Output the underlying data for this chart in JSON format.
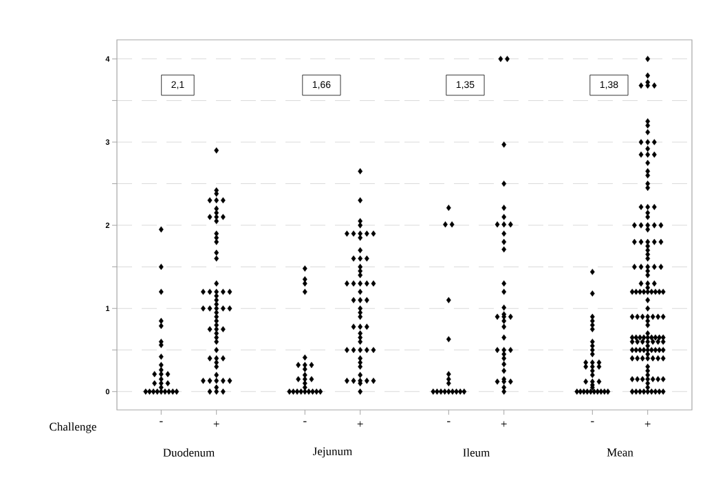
{
  "chart_data": [
    {
      "type": "scatter",
      "categories": [
        "-",
        "+"
      ],
      "xlabel": "Duodenum",
      "marker": "diamond",
      "grid": "y",
      "ylim": [
        -0.22,
        4.23
      ],
      "yticks": [
        0,
        {
          "value": 0.5,
          "label": null
        },
        1,
        {
          "value": 1.5,
          "label": null
        },
        2,
        {
          "value": 2.5,
          "label": null
        },
        3,
        {
          "value": 3.5,
          "label": null
        },
        4
      ],
      "annotations": [
        "2,1",
        "Challenge"
      ],
      "series": [
        {
          "color": "#000000",
          "x": [
            "-",
            "-",
            "-",
            "-",
            "-",
            "-",
            "-",
            "-",
            "-",
            "-",
            "-",
            "-",
            "-",
            "-",
            "-",
            "-",
            "-",
            "-",
            "-",
            "-",
            "-",
            "-",
            "-",
            "-",
            "-",
            "-",
            "-"
          ],
          "values": [
            0,
            0,
            0,
            0,
            0,
            0,
            0,
            0,
            0,
            0.05,
            0.1,
            0.1,
            0.1,
            0.15,
            0.21,
            0.21,
            0.21,
            0.26,
            0.32,
            0.42,
            0.56,
            0.6,
            0.79,
            0.85,
            1.2,
            1.5,
            1.95
          ]
        },
        {
          "color": "#000000",
          "x": [
            "+",
            "+",
            "+",
            "+",
            "+",
            "+",
            "+",
            "+",
            "+",
            "+",
            "+",
            "+",
            "+",
            "+",
            "+",
            "+",
            "+",
            "+",
            "+",
            "+",
            "+",
            "+",
            "+",
            "+",
            "+",
            "+",
            "+",
            "+",
            "+",
            "+",
            "+",
            "+",
            "+",
            "+",
            "+",
            "+",
            "+",
            "+",
            "+",
            "+",
            "+",
            "+",
            "+",
            "+",
            "+",
            "+",
            "+",
            "+",
            "+",
            "+",
            "+",
            "+",
            "+",
            "+",
            "+",
            "+",
            "+"
          ],
          "values": [
            0,
            0,
            0,
            0.05,
            0.13,
            0.13,
            0.13,
            0.13,
            0.13,
            0.2,
            0.3,
            0.35,
            0.4,
            0.4,
            0.4,
            0.5,
            0.6,
            0.65,
            0.7,
            0.75,
            0.75,
            0.75,
            0.8,
            0.85,
            0.9,
            0.95,
            1,
            1,
            1,
            1,
            1,
            1.05,
            1.1,
            1.15,
            1.2,
            1.2,
            1.2,
            1.2,
            1.2,
            1.3,
            1.6,
            1.67,
            1.8,
            1.85,
            1.9,
            2.05,
            2.1,
            2.1,
            2.1,
            2.15,
            2.2,
            2.3,
            2.3,
            2.3,
            2.38,
            2.42,
            2.9
          ]
        }
      ]
    },
    {
      "type": "scatter",
      "categories": [
        "-",
        "+"
      ],
      "xlabel": "Jejunum",
      "marker": "diamond",
      "grid": "y",
      "tick_labels": "x",
      "ylim": [
        -0.22,
        4.23
      ],
      "yticks": [
        0,
        {
          "value": 0.5,
          "label": null
        },
        1,
        {
          "value": 1.5,
          "label": null
        },
        2,
        {
          "value": 2.5,
          "label": null
        },
        3,
        {
          "value": 3.5,
          "label": null
        },
        4
      ],
      "annotations": [
        "1,66"
      ],
      "series": [
        {
          "color": "#000000",
          "x": [
            "-",
            "-",
            "-",
            "-",
            "-",
            "-",
            "-",
            "-",
            "-",
            "-",
            "-",
            "-",
            "-",
            "-",
            "-",
            "-",
            "-",
            "-",
            "-",
            "-",
            "-",
            "-",
            "-",
            "-"
          ],
          "values": [
            0,
            0,
            0,
            0,
            0,
            0,
            0,
            0,
            0,
            0.05,
            0.1,
            0.15,
            0.15,
            0.15,
            0.2,
            0.27,
            0.32,
            0.32,
            0.32,
            0.41,
            1.2,
            1.3,
            1.35,
            1.48
          ]
        },
        {
          "color": "#000000",
          "x": [
            "+",
            "+",
            "+",
            "+",
            "+",
            "+",
            "+",
            "+",
            "+",
            "+",
            "+",
            "+",
            "+",
            "+",
            "+",
            "+",
            "+",
            "+",
            "+",
            "+",
            "+",
            "+",
            "+",
            "+",
            "+",
            "+",
            "+",
            "+",
            "+",
            "+",
            "+",
            "+",
            "+",
            "+",
            "+",
            "+",
            "+",
            "+",
            "+",
            "+",
            "+",
            "+",
            "+",
            "+",
            "+",
            "+",
            "+",
            "+",
            "+",
            "+",
            "+"
          ],
          "values": [
            0,
            0.1,
            0.13,
            0.13,
            0.13,
            0.13,
            0.13,
            0.2,
            0.3,
            0.35,
            0.4,
            0.5,
            0.5,
            0.5,
            0.5,
            0.5,
            0.6,
            0.65,
            0.7,
            0.78,
            0.78,
            0.78,
            0.9,
            0.95,
            1,
            1.1,
            1.1,
            1.1,
            1.2,
            1.3,
            1.3,
            1.3,
            1.3,
            1.3,
            1.4,
            1.45,
            1.5,
            1.6,
            1.6,
            1.6,
            1.7,
            1.85,
            1.9,
            1.9,
            1.9,
            1.9,
            1.9,
            2,
            2.05,
            2.3,
            2.65
          ]
        }
      ]
    },
    {
      "type": "scatter",
      "categories": [
        "-",
        "+"
      ],
      "xlabel": "Ileum",
      "marker": "diamond",
      "grid": "y",
      "tick_labels": "x",
      "ylim": [
        -0.22,
        4.23
      ],
      "yticks": [
        0,
        {
          "value": 0.5,
          "label": null
        },
        1,
        {
          "value": 1.5,
          "label": null
        },
        2,
        {
          "value": 2.5,
          "label": null
        },
        3,
        {
          "value": 3.5,
          "label": null
        },
        4
      ],
      "annotations": [
        "1,35"
      ],
      "series": [
        {
          "color": "#000000",
          "x": [
            "-",
            "-",
            "-",
            "-",
            "-",
            "-",
            "-",
            "-",
            "-",
            "-",
            "-",
            "-",
            "-",
            "-",
            "-",
            "-",
            "-"
          ],
          "values": [
            0,
            0,
            0,
            0,
            0,
            0,
            0,
            0,
            0,
            0.1,
            0.15,
            0.21,
            0.63,
            1.1,
            2.01,
            2.01,
            2.21
          ]
        },
        {
          "color": "#000000",
          "x": [
            "+",
            "+",
            "+",
            "+",
            "+",
            "+",
            "+",
            "+",
            "+",
            "+",
            "+",
            "+",
            "+",
            "+",
            "+",
            "+",
            "+",
            "+",
            "+",
            "+",
            "+",
            "+",
            "+",
            "+",
            "+",
            "+",
            "+",
            "+",
            "+",
            "+",
            "+",
            "+",
            "+",
            "+",
            "+"
          ],
          "values": [
            0,
            0.05,
            0.12,
            0.12,
            0.12,
            0.15,
            0.25,
            0.33,
            0.4,
            0.45,
            0.5,
            0.5,
            0.5,
            0.65,
            0.78,
            0.85,
            0.9,
            0.9,
            0.9,
            0.93,
            1.01,
            1.2,
            1.3,
            1.71,
            1.8,
            1.9,
            2.01,
            2.01,
            2.01,
            2.1,
            2.21,
            2.5,
            2.97,
            4,
            4
          ]
        }
      ]
    },
    {
      "type": "scatter",
      "categories": [
        "-",
        "+"
      ],
      "xlabel": "Mean",
      "marker": "diamond",
      "grid": "y",
      "tick_labels": "x",
      "ylim": [
        -0.22,
        4.23
      ],
      "yticks": [
        0,
        {
          "value": 0.5,
          "label": null
        },
        1,
        {
          "value": 1.5,
          "label": null
        },
        2,
        {
          "value": 2.5,
          "label": null
        },
        3,
        {
          "value": 3.5,
          "label": null
        },
        4
      ],
      "annotations": [
        "1,38"
      ],
      "series": [
        {
          "color": "#000000",
          "x": [
            "-",
            "-",
            "-",
            "-",
            "-",
            "-",
            "-",
            "-",
            "-",
            "-",
            "-",
            "-",
            "-",
            "-",
            "-",
            "-",
            "-",
            "-",
            "-",
            "-",
            "-",
            "-",
            "-",
            "-",
            "-",
            "-",
            "-",
            "-",
            "-",
            "-",
            "-",
            "-",
            "-"
          ],
          "values": [
            0,
            0,
            0,
            0,
            0,
            0,
            0,
            0,
            0,
            0,
            0.05,
            0.08,
            0.12,
            0.12,
            0.12,
            0.2,
            0.25,
            0.3,
            0.3,
            0.3,
            0.35,
            0.35,
            0.35,
            0.45,
            0.5,
            0.55,
            0.6,
            0.75,
            0.8,
            0.85,
            0.9,
            1.18,
            1.44
          ]
        },
        {
          "color": "#000000",
          "x": [
            "+",
            "+",
            "+",
            "+",
            "+",
            "+",
            "+",
            "+",
            "+",
            "+",
            "+",
            "+",
            "+",
            "+",
            "+",
            "+",
            "+",
            "+",
            "+",
            "+",
            "+",
            "+",
            "+",
            "+",
            "+",
            "+",
            "+",
            "+",
            "+",
            "+",
            "+",
            "+",
            "+",
            "+",
            "+",
            "+",
            "+",
            "+",
            "+",
            "+",
            "+",
            "+",
            "+",
            "+",
            "+",
            "+",
            "+",
            "+",
            "+",
            "+",
            "+",
            "+",
            "+",
            "+",
            "+",
            "+",
            "+",
            "+",
            "+",
            "+",
            "+",
            "+",
            "+",
            "+",
            "+",
            "+",
            "+",
            "+",
            "+",
            "+",
            "+",
            "+",
            "+",
            "+",
            "+",
            "+",
            "+",
            "+",
            "+",
            "+",
            "+",
            "+",
            "+",
            "+",
            "+",
            "+",
            "+",
            "+",
            "+",
            "+",
            "+",
            "+",
            "+",
            "+",
            "+",
            "+",
            "+",
            "+",
            "+",
            "+",
            "+",
            "+",
            "+",
            "+",
            "+",
            "+",
            "+",
            "+",
            "+",
            "+",
            "+",
            "+",
            "+",
            "+",
            "+",
            "+",
            "+",
            "+",
            "+",
            "+",
            "+",
            "+",
            "+",
            "+",
            "+",
            "+",
            "+",
            "+"
          ],
          "values": [
            0,
            0,
            0,
            0,
            0,
            0,
            0,
            0,
            0,
            0.05,
            0.1,
            0.15,
            0.15,
            0.15,
            0.15,
            0.15,
            0.15,
            0.15,
            0.2,
            0.25,
            0.3,
            0.4,
            0.4,
            0.4,
            0.4,
            0.4,
            0.4,
            0.4,
            0.45,
            0.5,
            0.5,
            0.5,
            0.5,
            0.5,
            0.5,
            0.5,
            0.5,
            0.5,
            0.55,
            0.6,
            0.6,
            0.6,
            0.6,
            0.6,
            0.6,
            0.6,
            0.65,
            0.65,
            0.65,
            0.65,
            0.65,
            0.65,
            0.65,
            0.65,
            0.65,
            0.7,
            0.8,
            0.85,
            0.9,
            0.9,
            0.9,
            0.9,
            0.9,
            0.9,
            0.9,
            1,
            1.1,
            1.2,
            1.2,
            1.2,
            1.2,
            1.2,
            1.2,
            1.2,
            1.2,
            1.2,
            1.25,
            1.3,
            1.3,
            1.3,
            1.4,
            1.45,
            1.5,
            1.5,
            1.5,
            1.5,
            1.5,
            1.6,
            1.65,
            1.7,
            1.75,
            1.8,
            1.8,
            1.8,
            1.8,
            1.8,
            1.95,
            2,
            2,
            2,
            2,
            2,
            2.1,
            2.15,
            2.22,
            2.22,
            2.22,
            2.45,
            2.5,
            2.6,
            2.65,
            2.75,
            2.85,
            2.85,
            2.85,
            2.92,
            3,
            3,
            3,
            3.12,
            3.2,
            3.25,
            3.68,
            3.68,
            3.68,
            3.72,
            3.8,
            4
          ]
        }
      ]
    }
  ]
}
